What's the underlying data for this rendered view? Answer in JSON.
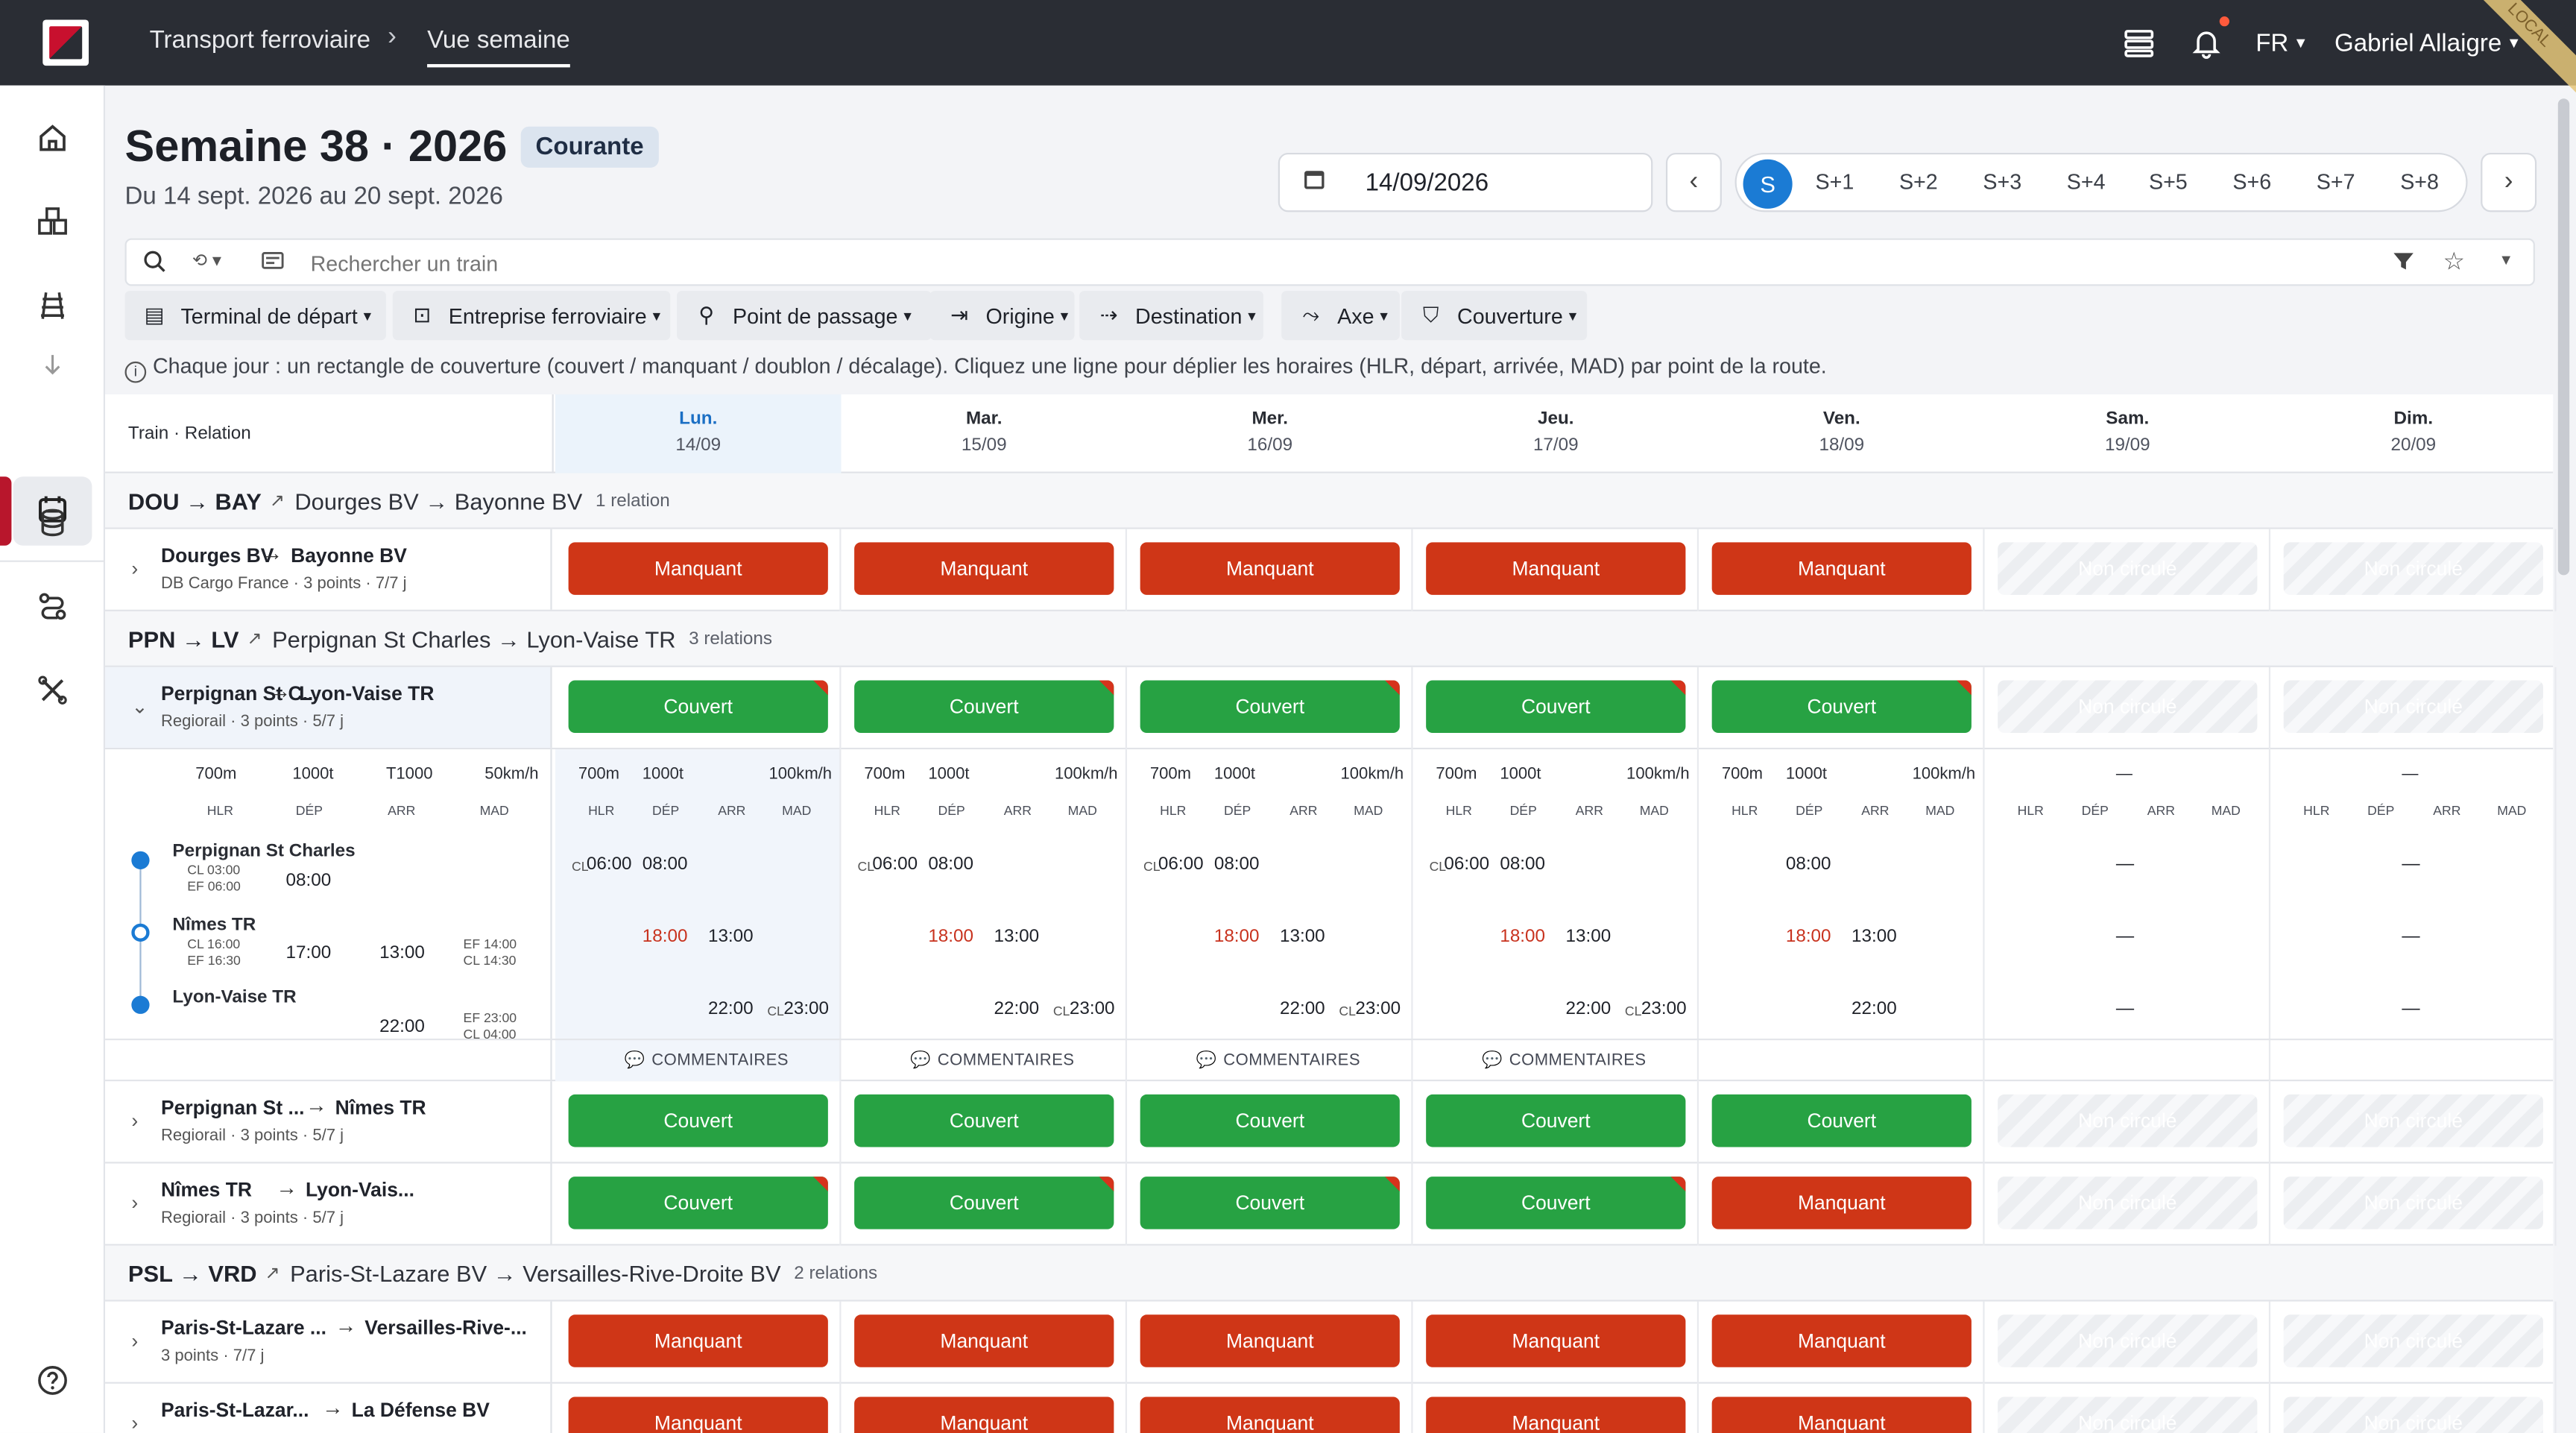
{
  "header": {
    "crumb1": "Transport ferroviaire",
    "crumb2": "Vue semaine",
    "lang": "FR",
    "user": "Gabriel Allaigre",
    "corner_label": "LOCAL"
  },
  "page": {
    "title": "Semaine 38 · 2026",
    "badge": "Courante",
    "subtitle": "Du 14 sept. 2026 au 20 sept. 2026",
    "date": "14/09/2026",
    "weeks": [
      "S",
      "S+1",
      "S+2",
      "S+3",
      "S+4",
      "S+5",
      "S+6",
      "S+7",
      "S+8"
    ]
  },
  "search": {
    "placeholder": "Rechercher un train"
  },
  "filters": [
    "Terminal de départ",
    "Entreprise ferroviaire",
    "Point de passage",
    "Origine",
    "Destination",
    "Axe",
    "Couverture"
  ],
  "info": "Chaque jour : un rectangle de couverture (couvert / manquant / doublon / décalage). Cliquez une ligne pour déplier les horaires (HLR, départ, arrivée, MAD) par point de la route.",
  "table": {
    "col_header": "Train · Relation",
    "days": [
      {
        "d": "Lun.",
        "dt": "14/09"
      },
      {
        "d": "Mar.",
        "dt": "15/09"
      },
      {
        "d": "Mer.",
        "dt": "16/09"
      },
      {
        "d": "Jeu.",
        "dt": "17/09"
      },
      {
        "d": "Ven.",
        "dt": "18/09"
      },
      {
        "d": "Sam.",
        "dt": "19/09"
      },
      {
        "d": "Dim.",
        "dt": "20/09"
      }
    ]
  },
  "labels": {
    "covered": "Couvert",
    "missing": "Manquant",
    "na": "Non circulé",
    "comments": "COMMENTAIRES",
    "dash": "—",
    "hlr": "HLR",
    "dep": "DÉP",
    "arr": "ARR",
    "mad": "MAD"
  },
  "groups": [
    {
      "code": "DOU → BAY",
      "name": "Dourges BV → Bayonne BV",
      "count": "1 relation"
    },
    {
      "code": "PPN → LV",
      "name": "Perpignan St Charles → Lyon-Vaise TR",
      "count": "3 relations"
    },
    {
      "code": "PSL → VRD",
      "name": "Paris-St-Lazare BV → Versailles-Rive-Droite BV",
      "count": "2 relations"
    }
  ],
  "rows": [
    {
      "from": "Dourges BV",
      "to": "Bayonne BV",
      "meta": "DB Cargo France · 3 points · 7/7 j"
    },
    {
      "from": "Perpignan St C...",
      "to": "Lyon-Vaise TR",
      "meta": "Regiorail · 3 points · 5/7 j"
    },
    {
      "from": "Perpignan St ...",
      "to": "Nîmes TR",
      "meta": "Regiorail · 3 points · 5/7 j"
    },
    {
      "from": "Nîmes TR",
      "to": "Lyon-Vais...",
      "meta": "Regiorail · 3 points · 5/7 j"
    },
    {
      "from": "Paris-St-Lazare ...",
      "to": "Versailles-Rive-...",
      "meta": "3 points · 7/7 j"
    },
    {
      "from": "Paris-St-Lazar...",
      "to": "La Défense BV"
    }
  ],
  "detail": {
    "len": "700",
    "len_u": "m",
    "weight": "1000",
    "weight_u": "t",
    "type": "T1000",
    "speed": "50",
    "speed_u": "km/h",
    "speed_day": "100",
    "stops": [
      {
        "name": "Perpignan St Charles",
        "cl": "03:00",
        "ef": "06:00",
        "hlr": "08:00"
      },
      {
        "name": "Nîmes TR",
        "cl": "16:00",
        "ef": "16:30",
        "dep": "17:00",
        "arr": "13:00",
        "ef2": "14:00",
        "cl2": "14:30"
      },
      {
        "name": "Lyon-Vaise TR",
        "arr": "22:00",
        "ef": "23:00",
        "cl": "04:00"
      }
    ],
    "day": {
      "t1a": "06:00",
      "t1b": "08:00",
      "t2a": "18:00",
      "t2b": "13:00",
      "t3a": "22:00",
      "t3b": "23:00"
    },
    "cl": "CL",
    "ef": "EF"
  }
}
